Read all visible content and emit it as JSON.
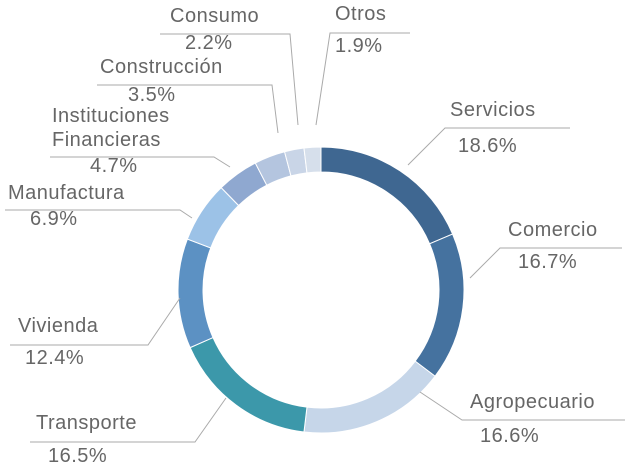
{
  "chart_data": {
    "type": "donut",
    "categories": [
      "Servicios",
      "Comercio",
      "Agropecuario",
      "Transporte",
      "Vivienda",
      "Manufactura",
      "Instituciones Financieras",
      "Construcción",
      "Consumo",
      "Otros"
    ],
    "values": [
      18.6,
      16.7,
      16.6,
      16.5,
      12.4,
      6.9,
      4.7,
      3.5,
      2.2,
      1.9
    ],
    "value_labels": [
      "18.6%",
      "16.7%",
      "16.6%",
      "16.5%",
      "12.4%",
      "6.9%",
      "4.7%",
      "3.5%",
      "2.2%",
      "1.9%"
    ],
    "colors": [
      "#3f6791",
      "#45729f",
      "#c6d6e9",
      "#3c98aa",
      "#5c91c3",
      "#9cc2e7",
      "#8fa8d0",
      "#b4c5df",
      "#c9d5e7",
      "#d6dfeb"
    ]
  }
}
